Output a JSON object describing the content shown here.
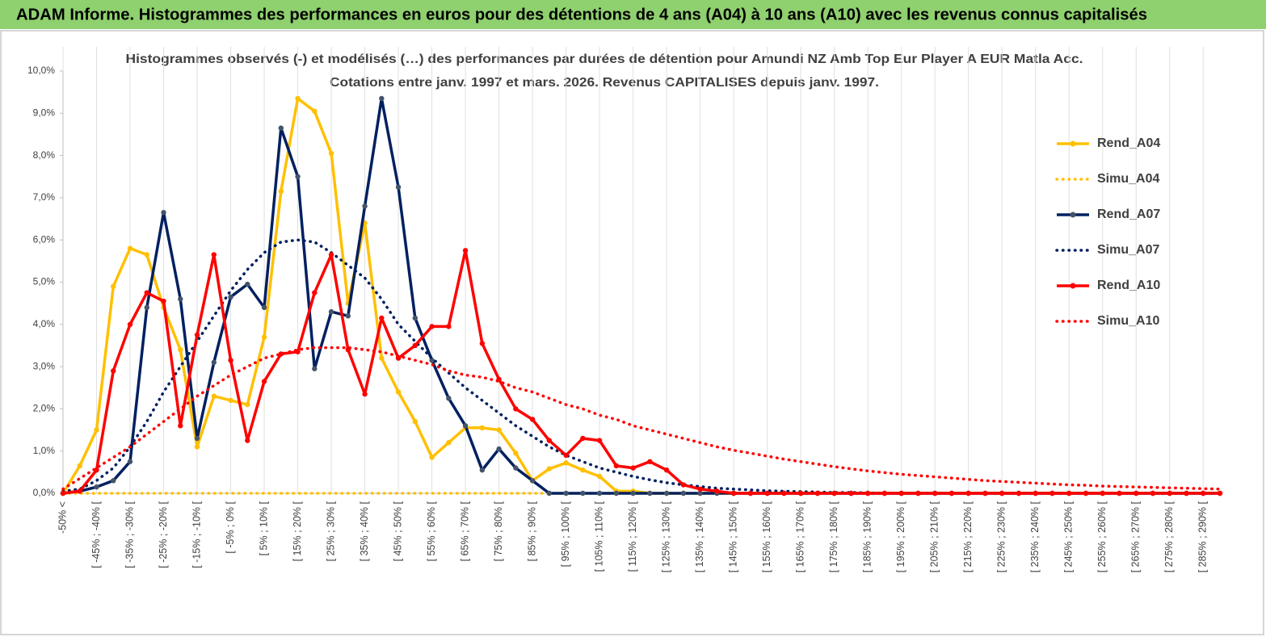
{
  "chart_data": {
    "type": "line",
    "banner_title": "ADAM Informe. Histogrammes des performances en euros pour des détentions de 4 ans (A04) à 10 ans (A10) avec les revenus connus capitalisés",
    "title": "Histogrammes observés (-)  et modélisés (…) des performances par durées de détention pour Amundi NZ Amb Top Eur Player A EUR Matla Acc.",
    "subtitle": "Cotations entre janv. 1997 et mars. 2026.  Revenus CAPITALISES depuis janv. 1997.",
    "categories": [
      "-50% <",
      null,
      "[ -45% ; -40% [",
      null,
      "[ -35% ; -30% [",
      null,
      "[ -25% ; -20% [",
      null,
      "[ -15% ; -10% [",
      null,
      "[ -5% ; 0% [",
      null,
      "[ 5% ; 10% [",
      null,
      "[ 15% ; 20% [",
      null,
      "[ 25% ; 30% [",
      null,
      "[ 35% ; 40% [",
      null,
      "[ 45% ; 50% [",
      null,
      "[ 55% ; 60% [",
      null,
      "[ 65% ; 70% [",
      null,
      "[ 75% ; 80% [",
      null,
      "[ 85% ; 90% [",
      null,
      "[ 95% ; 100% [",
      null,
      "[ 105% ; 110% [",
      null,
      "[ 115% ; 120% [",
      null,
      "[ 125% ; 130% [",
      null,
      "[ 135% ; 140% [",
      null,
      "[ 145% ; 150% [",
      null,
      "[ 155% ; 160% [",
      null,
      "[ 165% ; 170% [",
      null,
      "[ 175% ; 180% [",
      null,
      "[ 185% ; 190% [",
      null,
      "[ 195% ; 200% [",
      null,
      "[ 205% ; 210% [",
      null,
      "[ 215% ; 220% [",
      null,
      "[ 225% ; 230% [",
      null,
      "[ 235% ; 240% [",
      null,
      "[ 245% ; 250% [",
      null,
      "[ 255% ; 260% [",
      null,
      "[ 265% ; 270% [",
      null,
      "[ 275% ; 280% [",
      null,
      "[ 285% ; 290% [",
      null
    ],
    "series": [
      {
        "name": "Rend_A04",
        "color": "#ffc000",
        "marker_color": "#ffc000",
        "dotted": false,
        "values": [
          0,
          0.65,
          1.5,
          4.9,
          5.8,
          5.65,
          4.4,
          3.4,
          1.1,
          2.3,
          2.2,
          2.1,
          3.7,
          7.15,
          9.35,
          9.05,
          8.05,
          4.5,
          6.4,
          3.2,
          2.4,
          1.7,
          0.85,
          1.2,
          1.55,
          1.55,
          1.5,
          0.95,
          0.3,
          0.58,
          0.72,
          0.55,
          0.4,
          0.05,
          0.05,
          0,
          0,
          0,
          0,
          0,
          0,
          0,
          0,
          0,
          0,
          0,
          0,
          0,
          0,
          0,
          0,
          0,
          0,
          0,
          0,
          0,
          0,
          0,
          0,
          0,
          0,
          0,
          0,
          0,
          0,
          0,
          0,
          0,
          0,
          0
        ]
      },
      {
        "name": "Simu_A04",
        "color": "#ffc000",
        "dotted": true,
        "values": [
          0,
          0,
          0,
          0,
          0,
          0,
          0,
          0,
          0,
          0,
          0,
          0,
          0,
          0,
          0,
          0,
          0,
          0,
          0,
          0,
          0,
          0,
          0,
          0,
          0,
          0,
          0,
          0,
          0,
          0,
          0,
          0,
          0,
          0,
          0,
          0,
          0,
          0,
          0,
          0,
          0,
          0,
          0,
          0,
          0,
          0,
          0,
          0,
          0,
          0,
          0,
          0,
          0,
          0,
          0,
          0,
          0,
          0,
          0,
          0,
          0,
          0,
          0,
          0,
          0,
          0,
          0,
          0,
          0,
          0
        ]
      },
      {
        "name": "Rend_A07",
        "color": "#002060",
        "marker_color": "#44546a",
        "dotted": false,
        "values": [
          0,
          0.05,
          0.15,
          0.3,
          0.75,
          4.4,
          6.65,
          4.6,
          1.3,
          3.1,
          4.65,
          4.95,
          4.4,
          8.65,
          7.5,
          2.95,
          4.3,
          4.2,
          6.8,
          9.35,
          7.25,
          4.15,
          3.15,
          2.25,
          1.6,
          0.55,
          1.05,
          0.6,
          0.3,
          0,
          0,
          0,
          0,
          0,
          0,
          0,
          0,
          0,
          0,
          0,
          0,
          0,
          0,
          0,
          0,
          0,
          0,
          0,
          0,
          0,
          0,
          0,
          0,
          0,
          0,
          0,
          0,
          0,
          0,
          0,
          0,
          0,
          0,
          0,
          0,
          0,
          0,
          0,
          0,
          0
        ]
      },
      {
        "name": "Simu_A07",
        "color": "#002060",
        "dotted": true,
        "values": [
          0.05,
          0.1,
          0.3,
          0.6,
          1.1,
          1.7,
          2.4,
          3.0,
          3.6,
          4.2,
          4.8,
          5.3,
          5.7,
          5.95,
          6.0,
          5.95,
          5.7,
          5.4,
          5.1,
          4.6,
          4.0,
          3.6,
          3.2,
          2.85,
          2.5,
          2.2,
          1.9,
          1.6,
          1.35,
          1.1,
          0.9,
          0.75,
          0.6,
          0.5,
          0.4,
          0.32,
          0.25,
          0.2,
          0.16,
          0.12,
          0.1,
          0.08,
          0.06,
          0.05,
          0.04,
          0.03,
          0.02,
          0.02,
          0.01,
          0,
          0,
          0,
          0,
          0,
          0,
          0,
          0,
          0,
          0,
          0,
          0,
          0,
          0,
          0,
          0,
          0,
          0,
          0,
          0,
          0
        ]
      },
      {
        "name": "Rend_A10",
        "color": "#ff0000",
        "marker_color": "#ff0000",
        "dotted": false,
        "values": [
          0,
          0.05,
          0.55,
          2.9,
          4.0,
          4.75,
          4.55,
          1.6,
          3.75,
          5.65,
          3.15,
          1.25,
          2.65,
          3.3,
          3.35,
          4.75,
          5.65,
          3.4,
          2.35,
          4.15,
          3.2,
          3.5,
          3.95,
          3.95,
          5.75,
          3.55,
          2.7,
          2.0,
          1.75,
          1.25,
          0.9,
          1.3,
          1.25,
          0.65,
          0.6,
          0.75,
          0.55,
          0.2,
          0.1,
          0.05,
          0,
          0,
          0,
          0,
          0,
          0,
          0,
          0,
          0,
          0,
          0,
          0,
          0,
          0,
          0,
          0,
          0,
          0,
          0,
          0,
          0,
          0,
          0,
          0,
          0,
          0,
          0,
          0,
          0,
          0
        ]
      },
      {
        "name": "Simu_A10",
        "color": "#ff0000",
        "dotted": true,
        "values": [
          0.1,
          0.35,
          0.6,
          0.85,
          1.1,
          1.4,
          1.7,
          2.0,
          2.3,
          2.55,
          2.8,
          3.0,
          3.2,
          3.3,
          3.4,
          3.45,
          3.45,
          3.45,
          3.4,
          3.35,
          3.25,
          3.15,
          3.05,
          2.9,
          2.8,
          2.75,
          2.65,
          2.5,
          2.4,
          2.25,
          2.1,
          2.0,
          1.85,
          1.75,
          1.6,
          1.5,
          1.4,
          1.3,
          1.2,
          1.1,
          1.02,
          0.95,
          0.88,
          0.81,
          0.75,
          0.69,
          0.63,
          0.58,
          0.53,
          0.49,
          0.45,
          0.42,
          0.39,
          0.36,
          0.33,
          0.3,
          0.28,
          0.26,
          0.24,
          0.22,
          0.2,
          0.19,
          0.17,
          0.16,
          0.15,
          0.14,
          0.13,
          0.12,
          0.11,
          0.1
        ]
      }
    ],
    "ylim": [
      0,
      10
    ],
    "yticks": [
      {
        "value": 0,
        "label": "0,0%"
      },
      {
        "value": 1,
        "label": "1,0%"
      },
      {
        "value": 2,
        "label": "2,0%"
      },
      {
        "value": 3,
        "label": "3,0%"
      },
      {
        "value": 4,
        "label": "4,0%"
      },
      {
        "value": 5,
        "label": "5,0%"
      },
      {
        "value": 6,
        "label": "6,0%"
      },
      {
        "value": 7,
        "label": "7,0%"
      },
      {
        "value": 8,
        "label": "8,0%"
      },
      {
        "value": 9,
        "label": "9,0%"
      },
      {
        "value": 10,
        "label": "10,0%"
      }
    ],
    "grid": "x",
    "legend": "right"
  }
}
